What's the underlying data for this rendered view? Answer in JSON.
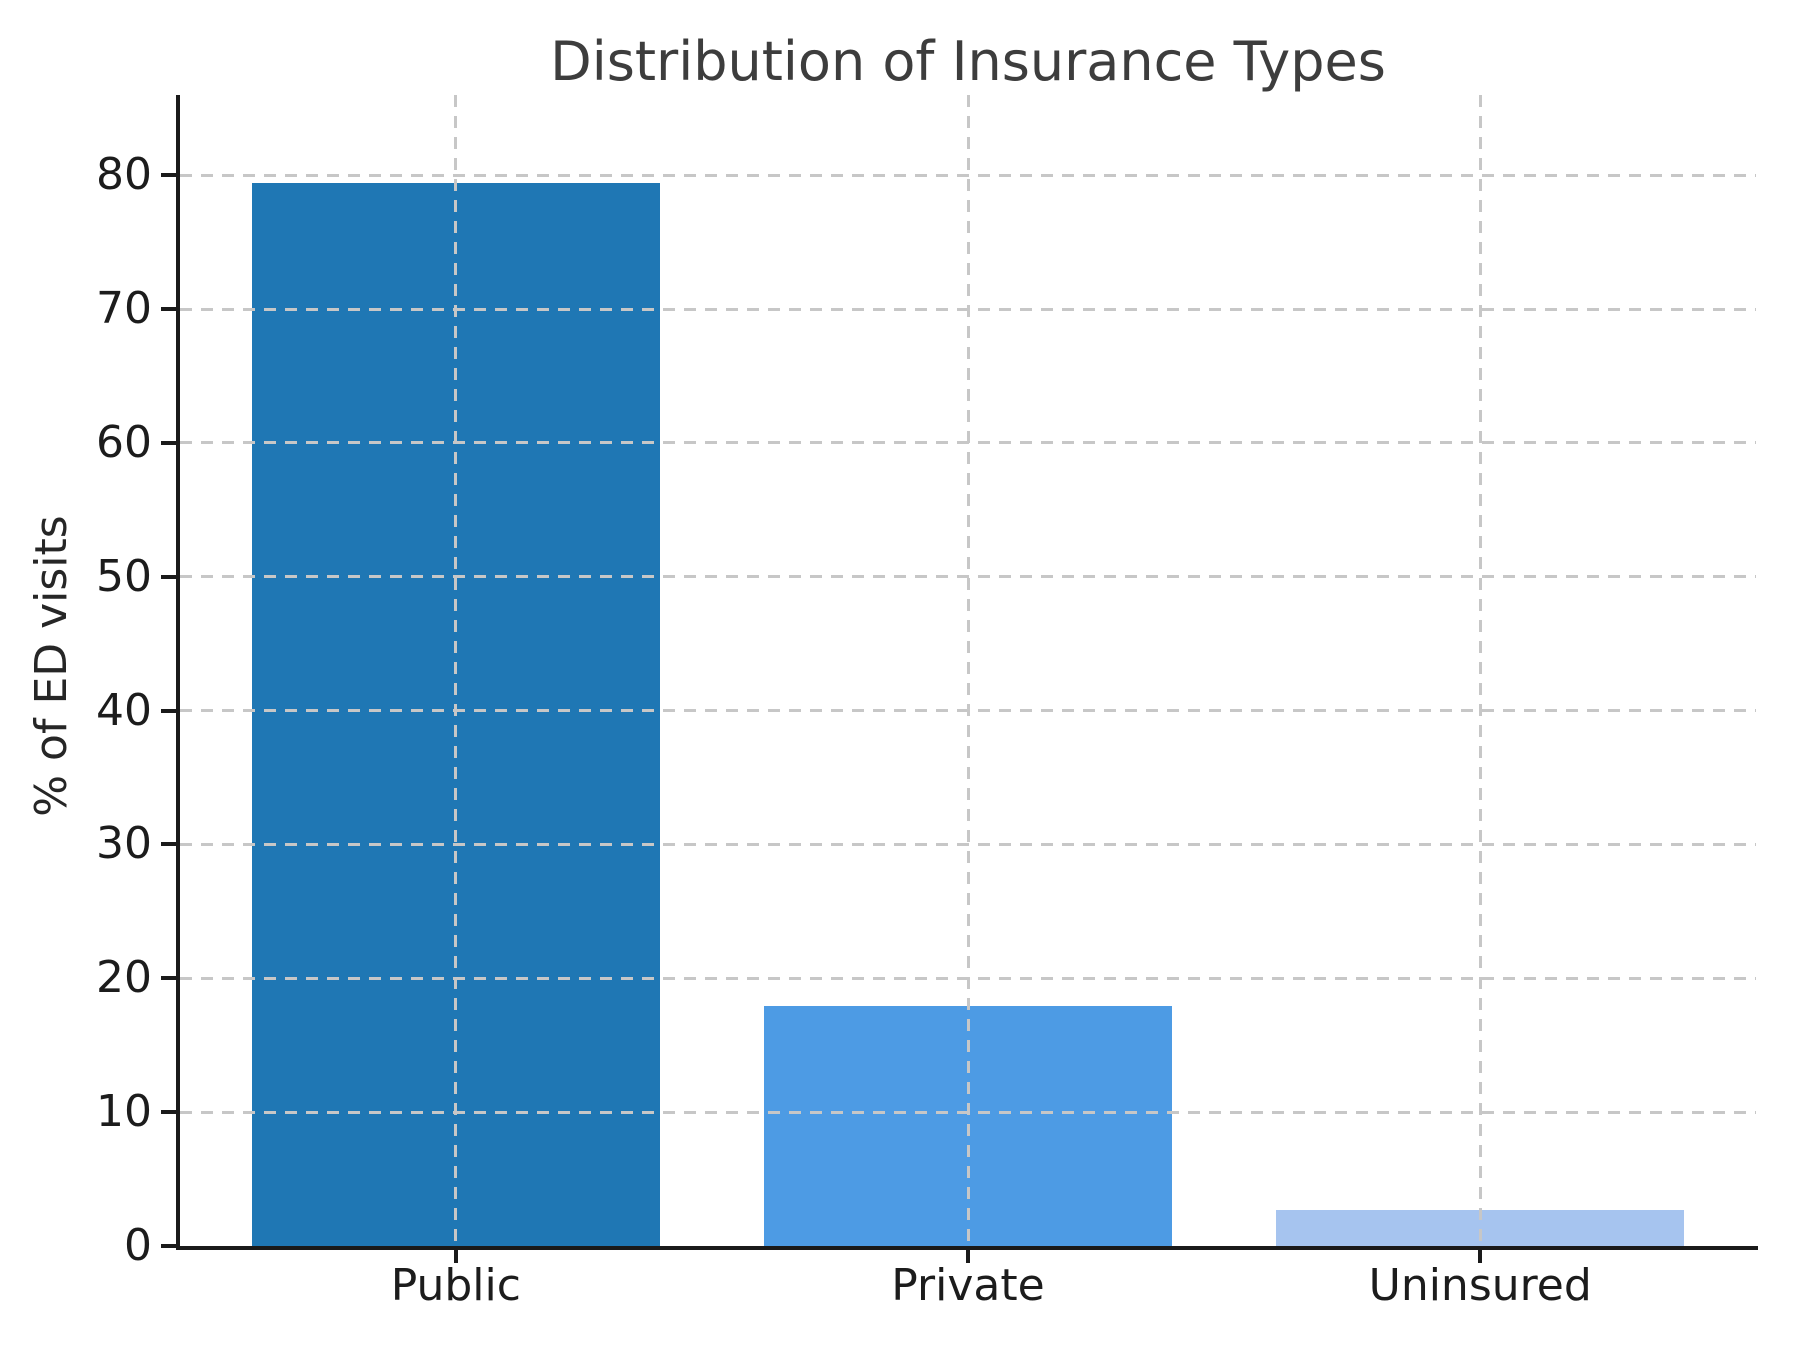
{
  "chart_data": {
    "type": "bar",
    "title": "Distribution of Insurance Types",
    "ylabel": "% of ED visits",
    "xlabel": "",
    "categories": [
      "Public",
      "Private",
      "Uninsured"
    ],
    "values": [
      79.4,
      17.9,
      2.7
    ],
    "bar_colors": [
      "#1f77b4",
      "#4d9be4",
      "#a6c4ef"
    ],
    "yticks": [
      0,
      10,
      20,
      30,
      40,
      50,
      60,
      70,
      80
    ],
    "ylim": [
      0,
      86
    ],
    "grid": "dashed gray gridlines on both axes, drawn above bars",
    "legend": "none",
    "spines": "left and bottom only, black"
  },
  "colors": {
    "background": "#ffffff",
    "spine": "#1a1a1a",
    "gridline": "#c7c7c7",
    "title_text": "#3d3d3d",
    "tick_text": "#1c1c1c"
  }
}
